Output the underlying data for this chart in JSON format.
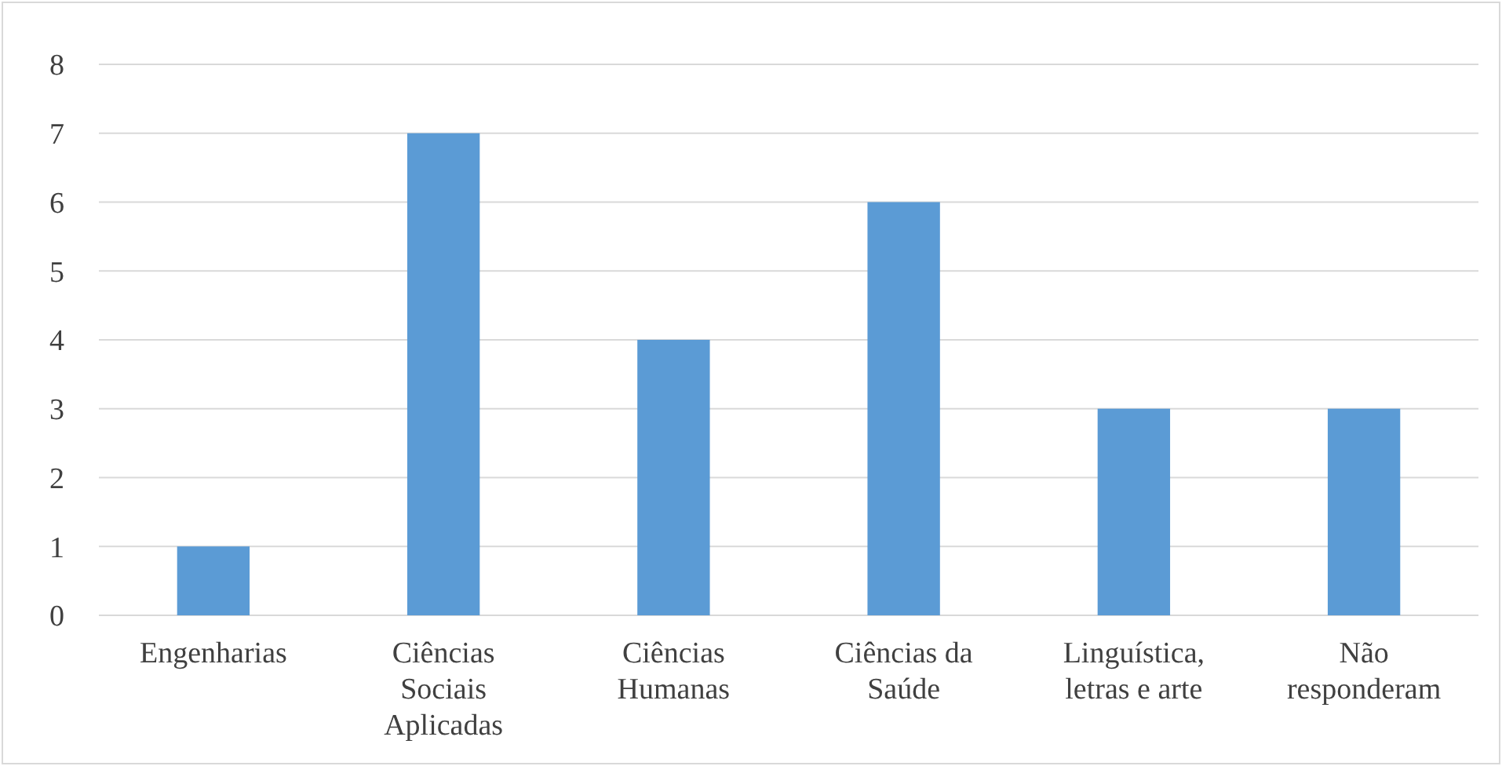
{
  "chart_data": {
    "type": "bar",
    "categories": [
      "Engenharias",
      "Ciências Sociais Aplicadas",
      "Ciências Humanas",
      "Ciências da Saúde",
      "Linguística, letras e arte",
      "Não responderam"
    ],
    "values": [
      1,
      7,
      4,
      6,
      3,
      3
    ],
    "color": "#5b9bd5",
    "ylim": [
      0,
      8
    ],
    "yticks": [
      0,
      1,
      2,
      3,
      4,
      5,
      6,
      7,
      8
    ],
    "grid": "y"
  }
}
